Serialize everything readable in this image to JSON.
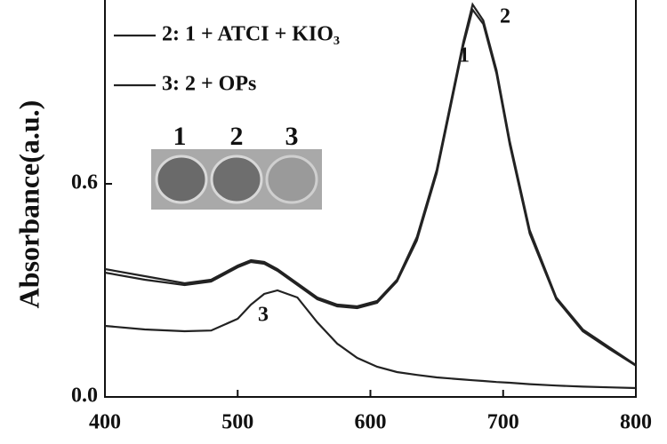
{
  "chart_data": {
    "type": "line",
    "y_label": "Absorbance(a.u.)",
    "x": [
      400,
      430,
      460,
      480,
      500,
      510,
      520,
      530,
      545,
      560,
      575,
      590,
      605,
      620,
      635,
      650,
      660,
      670,
      677,
      685,
      695,
      705,
      720,
      740,
      760,
      780,
      800
    ],
    "series": [
      {
        "color": "#222222",
        "values": [
          0.35,
          0.33,
          0.315,
          0.325,
          0.365,
          0.38,
          0.375,
          0.355,
          0.315,
          0.275,
          0.255,
          0.25,
          0.265,
          0.325,
          0.44,
          0.63,
          0.81,
          0.99,
          1.09,
          1.05,
          0.91,
          0.71,
          0.46,
          0.275,
          0.185,
          0.135,
          0.088
        ]
      },
      {
        "name": "2: 1 + ATCI + KIO₃",
        "color": "#222222",
        "values": [
          0.36,
          0.34,
          0.32,
          0.33,
          0.37,
          0.385,
          0.38,
          0.36,
          0.32,
          0.28,
          0.26,
          0.255,
          0.27,
          0.33,
          0.45,
          0.64,
          0.82,
          1.0,
          1.105,
          1.06,
          0.92,
          0.72,
          0.47,
          0.28,
          0.19,
          0.14,
          0.09
        ]
      },
      {
        "name": "3: 2 + OPs",
        "color": "#222222",
        "values": [
          0.2,
          0.19,
          0.185,
          0.187,
          0.22,
          0.26,
          0.29,
          0.3,
          0.28,
          0.21,
          0.15,
          0.11,
          0.085,
          0.07,
          0.062,
          0.055,
          0.052,
          0.049,
          0.047,
          0.045,
          0.042,
          0.04,
          0.036,
          0.032,
          0.029,
          0.027,
          0.025
        ]
      }
    ],
    "curve_labels": [
      "1",
      "2",
      "3"
    ],
    "inset_labels": [
      "1",
      "2",
      "3"
    ],
    "xlim": [
      400,
      800
    ],
    "xticks": [
      400,
      500,
      600,
      700,
      800
    ],
    "ylim": [
      0,
      1.12
    ],
    "yticks": [
      {
        "value": 0,
        "label": "0.0"
      },
      0.6
    ]
  }
}
